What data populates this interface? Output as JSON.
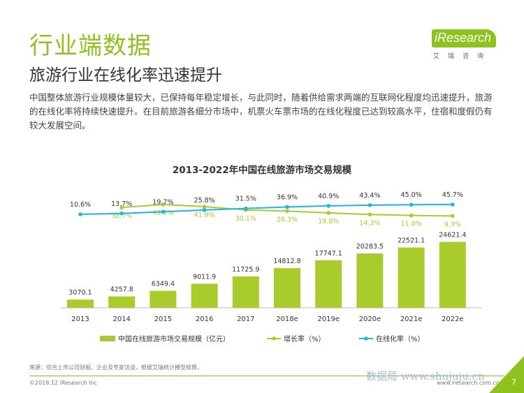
{
  "header": {
    "section_title": "行业端数据",
    "subtitle": "旅游行业在线化率迅速提升"
  },
  "logo": {
    "brand": "iResearch",
    "sub": "艾瑞咨询"
  },
  "description": "中国整体旅游行业规模体量较大，已保持每年稳定增长，与此同时，随着供给需求两端的互联网化程度均迅速提升，旅游的在线化率将持续快速提升。在目前旅游各细分市场中，机票火车票市场的在线化程度已达到较高水平，住宿和度假仍有较大发展空间。",
  "chart_data": {
    "type": "bar",
    "title": "2013-2022年中国在线旅游市场交易规模",
    "categories": [
      "2013",
      "2014",
      "2015",
      "2016",
      "2017",
      "2018e",
      "2019e",
      "2020e",
      "2021e",
      "2022e"
    ],
    "series": [
      {
        "name": "中国在线旅游市场交易规模（亿元）",
        "type": "bar",
        "color": "#a9cc2c",
        "values": [
          3070.1,
          4257.8,
          6349.4,
          9011.9,
          11725.9,
          14812.8,
          17747.1,
          20283.5,
          22521.1,
          24621.4
        ],
        "labels": [
          "3070.1",
          "4257.8",
          "6349.4",
          "9011.9",
          "11725.9",
          "14812.8",
          "17747.1",
          "20283.5",
          "22521.1",
          "24621.4"
        ]
      },
      {
        "name": "增长率（%）",
        "type": "line",
        "color": "#a9cc2c",
        "values": [
          null,
          38.7,
          49.1,
          41.9,
          30.1,
          26.3,
          19.8,
          14.3,
          11.0,
          9.3
        ],
        "labels": [
          "",
          "38.7%",
          "49.1%",
          "41.9%",
          "30.1%",
          "26.3%",
          "19.8%",
          "14.3%",
          "11.0%",
          "9.3%"
        ]
      },
      {
        "name": "在线化率（%）",
        "type": "line",
        "color": "#1fb4e8",
        "values": [
          10.6,
          13.7,
          19.7,
          25.8,
          31.5,
          36.9,
          40.9,
          43.4,
          45.0,
          45.7
        ],
        "labels": [
          "10.6%",
          "13.7%",
          "19.7%",
          "25.8%",
          "31.5%",
          "36.9%",
          "40.9%",
          "43.4%",
          "45.0%",
          "45.7%"
        ]
      }
    ],
    "bar_ylim": [
      0,
      25000
    ],
    "legend_position": "bottom",
    "grid": false
  },
  "footer": {
    "source": "来源：综合上市公司财报、企业及专家访谈，根据艾瑞统计模型核算。",
    "copyright": "©2018.12 iResearch Inc",
    "url": "www.iresearch.com.cn",
    "page": "7",
    "watermark": "数据局 www.shujuju.cn"
  }
}
